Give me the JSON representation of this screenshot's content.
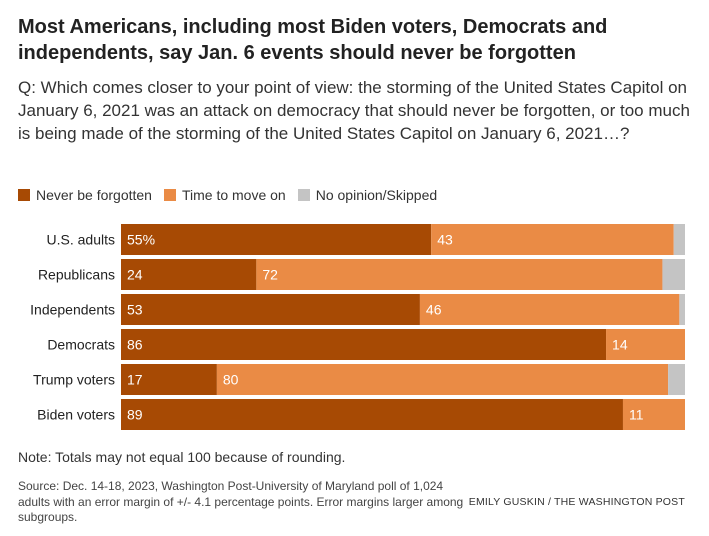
{
  "title": "Most Americans, including most Biden voters, Democrats and independents, say Jan. 6 events should never be forgotten",
  "question": "Q: Which comes closer to your point of view: the storming of the United States Capitol on January 6, 2021 was an attack on democracy that should never be forgotten, or too much is being made of the storming of the United States Capitol on January 6, 2021…?",
  "note": "Note: Totals may not equal 100 because of rounding.",
  "source": "Source: Dec. 14-18, 2023, Washington Post-University of Maryland poll of 1,024 adults with an error margin of +/- 4.1 percentage points. Error margins larger among subgroups.",
  "credit": "EMILY GUSKIN / THE WASHINGTON POST",
  "legend": [
    {
      "label": "Never be forgotten",
      "color": "#a74a04"
    },
    {
      "label": "Time to move on",
      "color": "#ea8b45"
    },
    {
      "label": "No opinion/Skipped",
      "color": "#c4c4c4"
    }
  ],
  "chart_data": {
    "type": "bar",
    "orientation": "horizontal",
    "stacked": true,
    "categories": [
      "U.S. adults",
      "Republicans",
      "Independents",
      "Democrats",
      "Trump voters",
      "Biden voters"
    ],
    "series": [
      {
        "name": "Never be forgotten",
        "values": [
          55,
          24,
          53,
          86,
          17,
          89
        ],
        "color": "#a74a04",
        "labels": [
          "55%",
          "24",
          "53",
          "86",
          "17",
          "89"
        ]
      },
      {
        "name": "Time to move on",
        "values": [
          43,
          72,
          46,
          14,
          80,
          11
        ],
        "color": "#ea8b45",
        "labels": [
          "43",
          "72",
          "46",
          "14",
          "80",
          "11"
        ]
      },
      {
        "name": "No opinion/Skipped",
        "values": [
          2,
          4,
          1,
          0,
          3,
          0
        ],
        "color": "#c4c4c4"
      }
    ],
    "xlim": [
      0,
      100
    ]
  }
}
